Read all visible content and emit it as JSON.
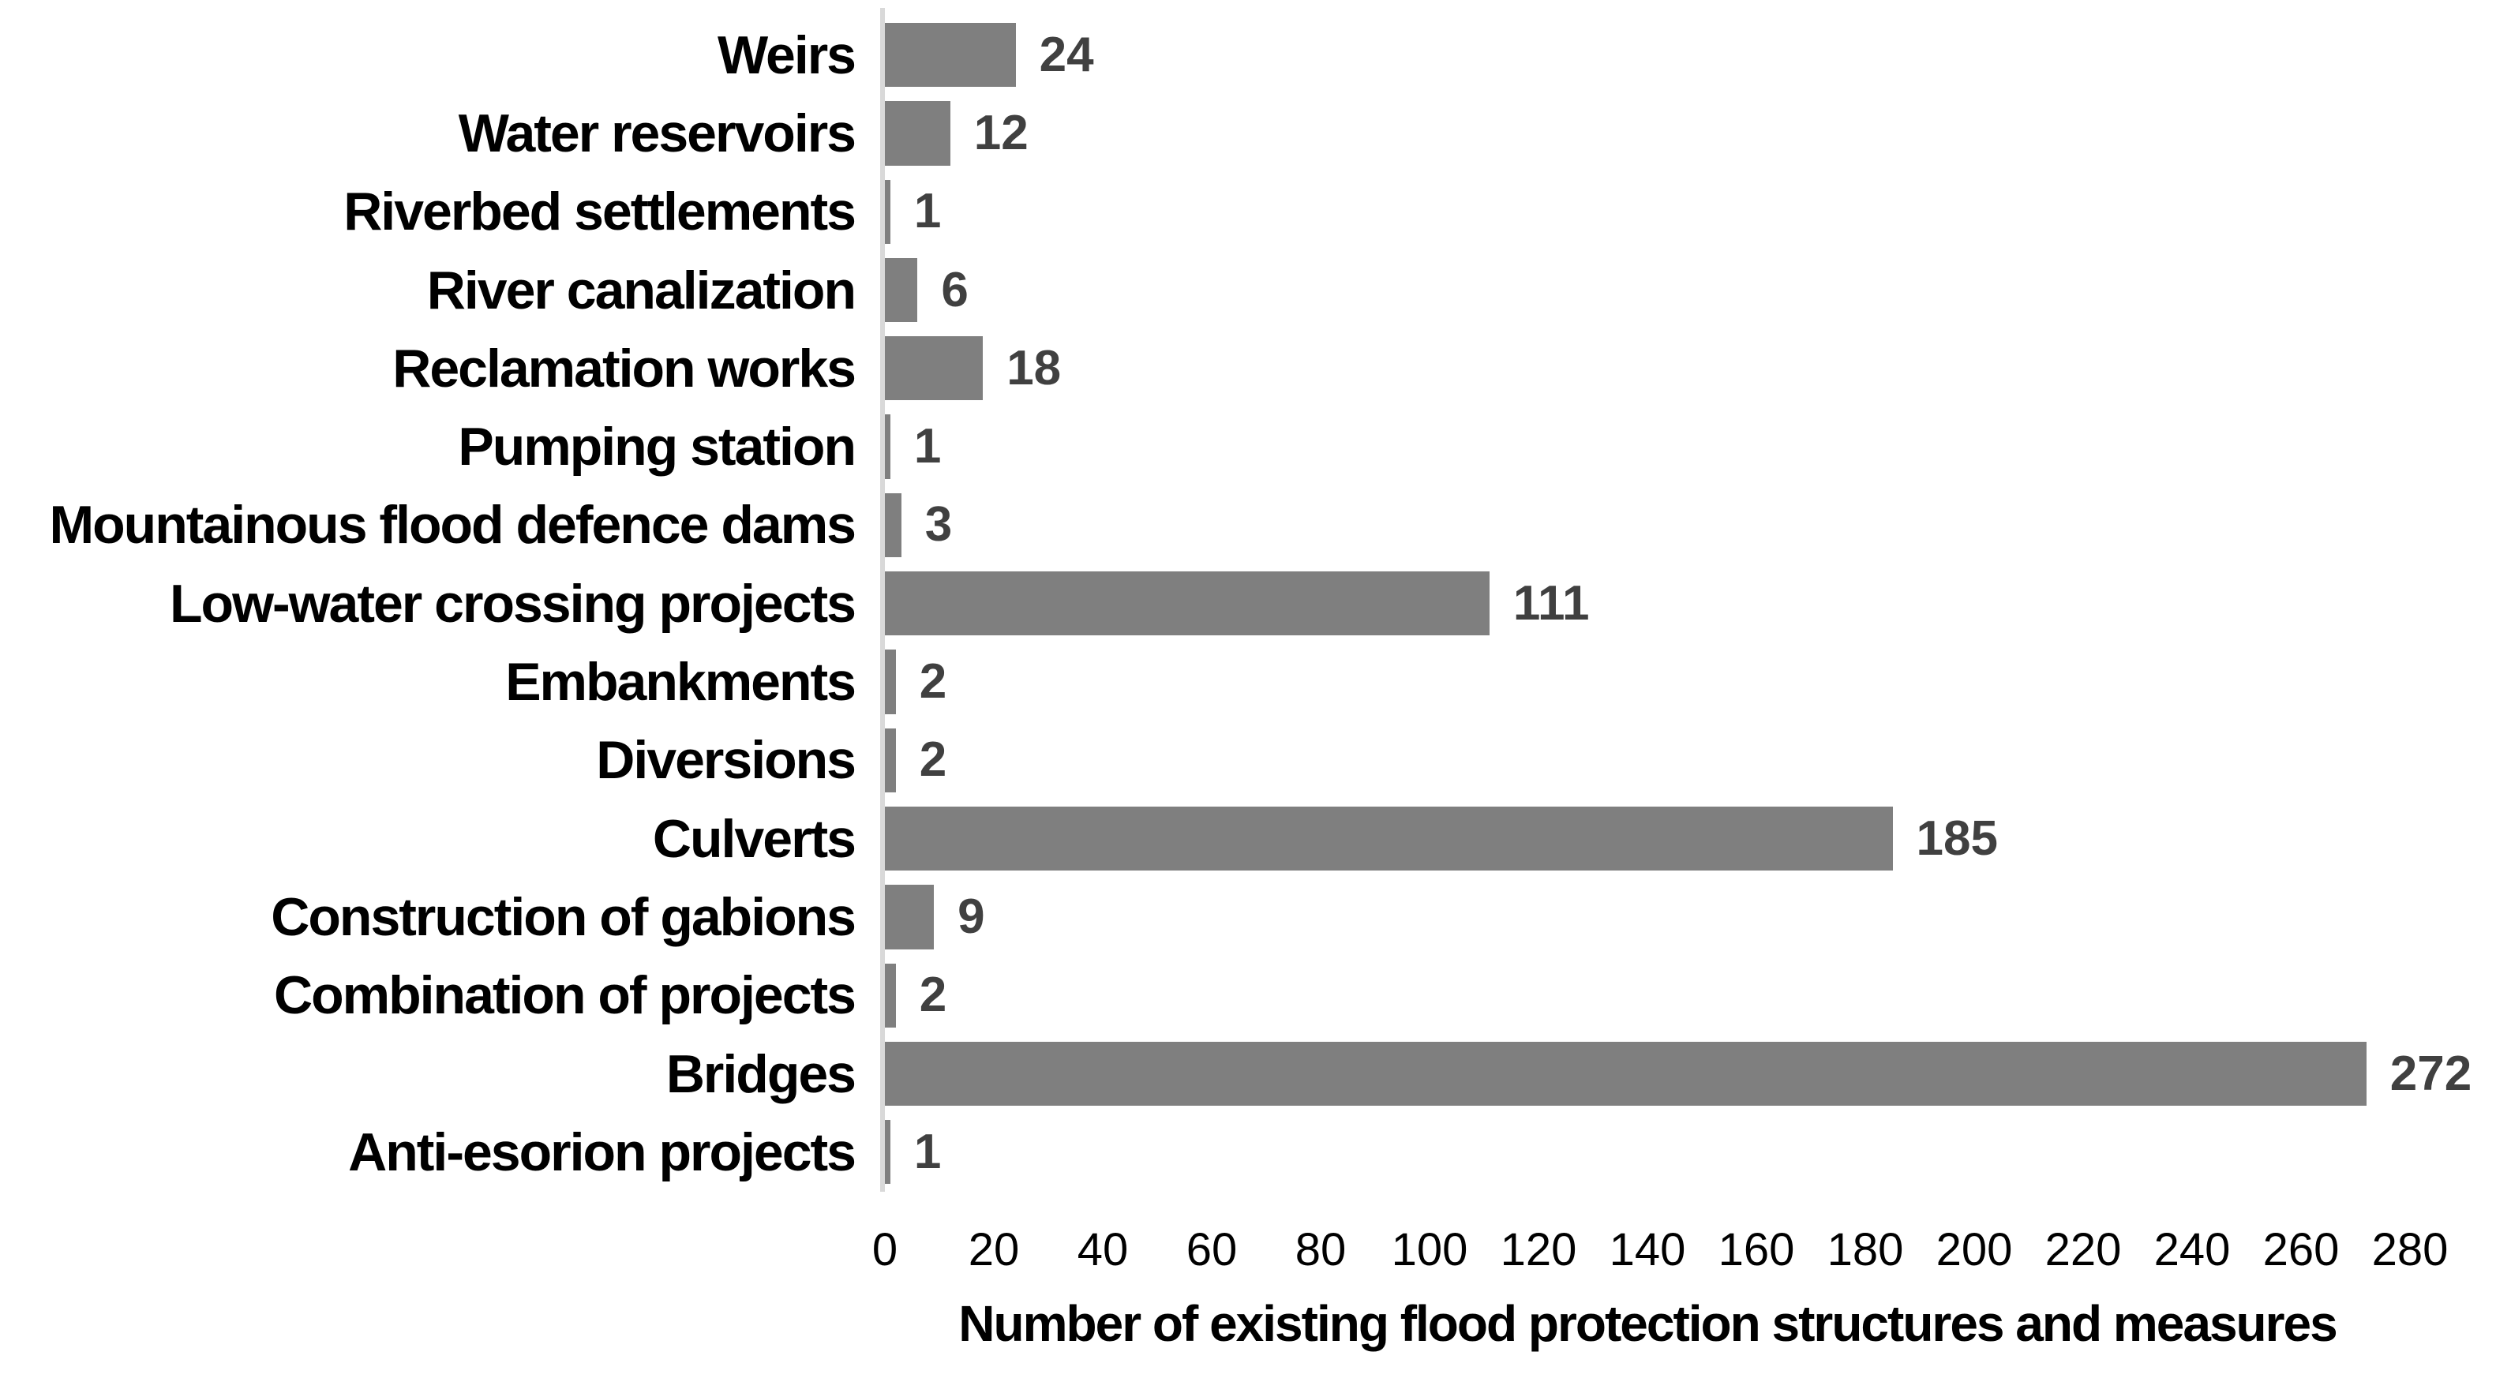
{
  "chart_data": {
    "type": "bar",
    "orientation": "horizontal",
    "categories": [
      "Weirs",
      "Water reservoirs",
      "Riverbed settlements",
      "River canalization",
      "Reclamation works",
      "Pumping station",
      "Mountainous flood defence dams",
      "Low-water crossing projects",
      "Embankments",
      "Diversions",
      "Culverts",
      "Construction of gabions",
      "Combination of projects",
      "Bridges",
      "Anti-esorion projects"
    ],
    "values": [
      24,
      12,
      1,
      6,
      18,
      1,
      3,
      111,
      2,
      2,
      185,
      9,
      2,
      272,
      1
    ],
    "title": "",
    "xlabel": "Number of existing flood protection structures and measures",
    "ylabel": "",
    "xlim": [
      0,
      280
    ],
    "x_ticks": [
      0,
      20,
      40,
      60,
      80,
      100,
      120,
      140,
      160,
      180,
      200,
      220,
      240,
      260,
      280
    ],
    "grid": false,
    "legend_position": "none",
    "data_labels": true,
    "colors": {
      "bar": "#7f7f7f",
      "value_label": "#404040",
      "category_label": "#000000",
      "tick_label": "#000000",
      "axis_line": "#d9d9d9",
      "background": "#ffffff"
    }
  }
}
